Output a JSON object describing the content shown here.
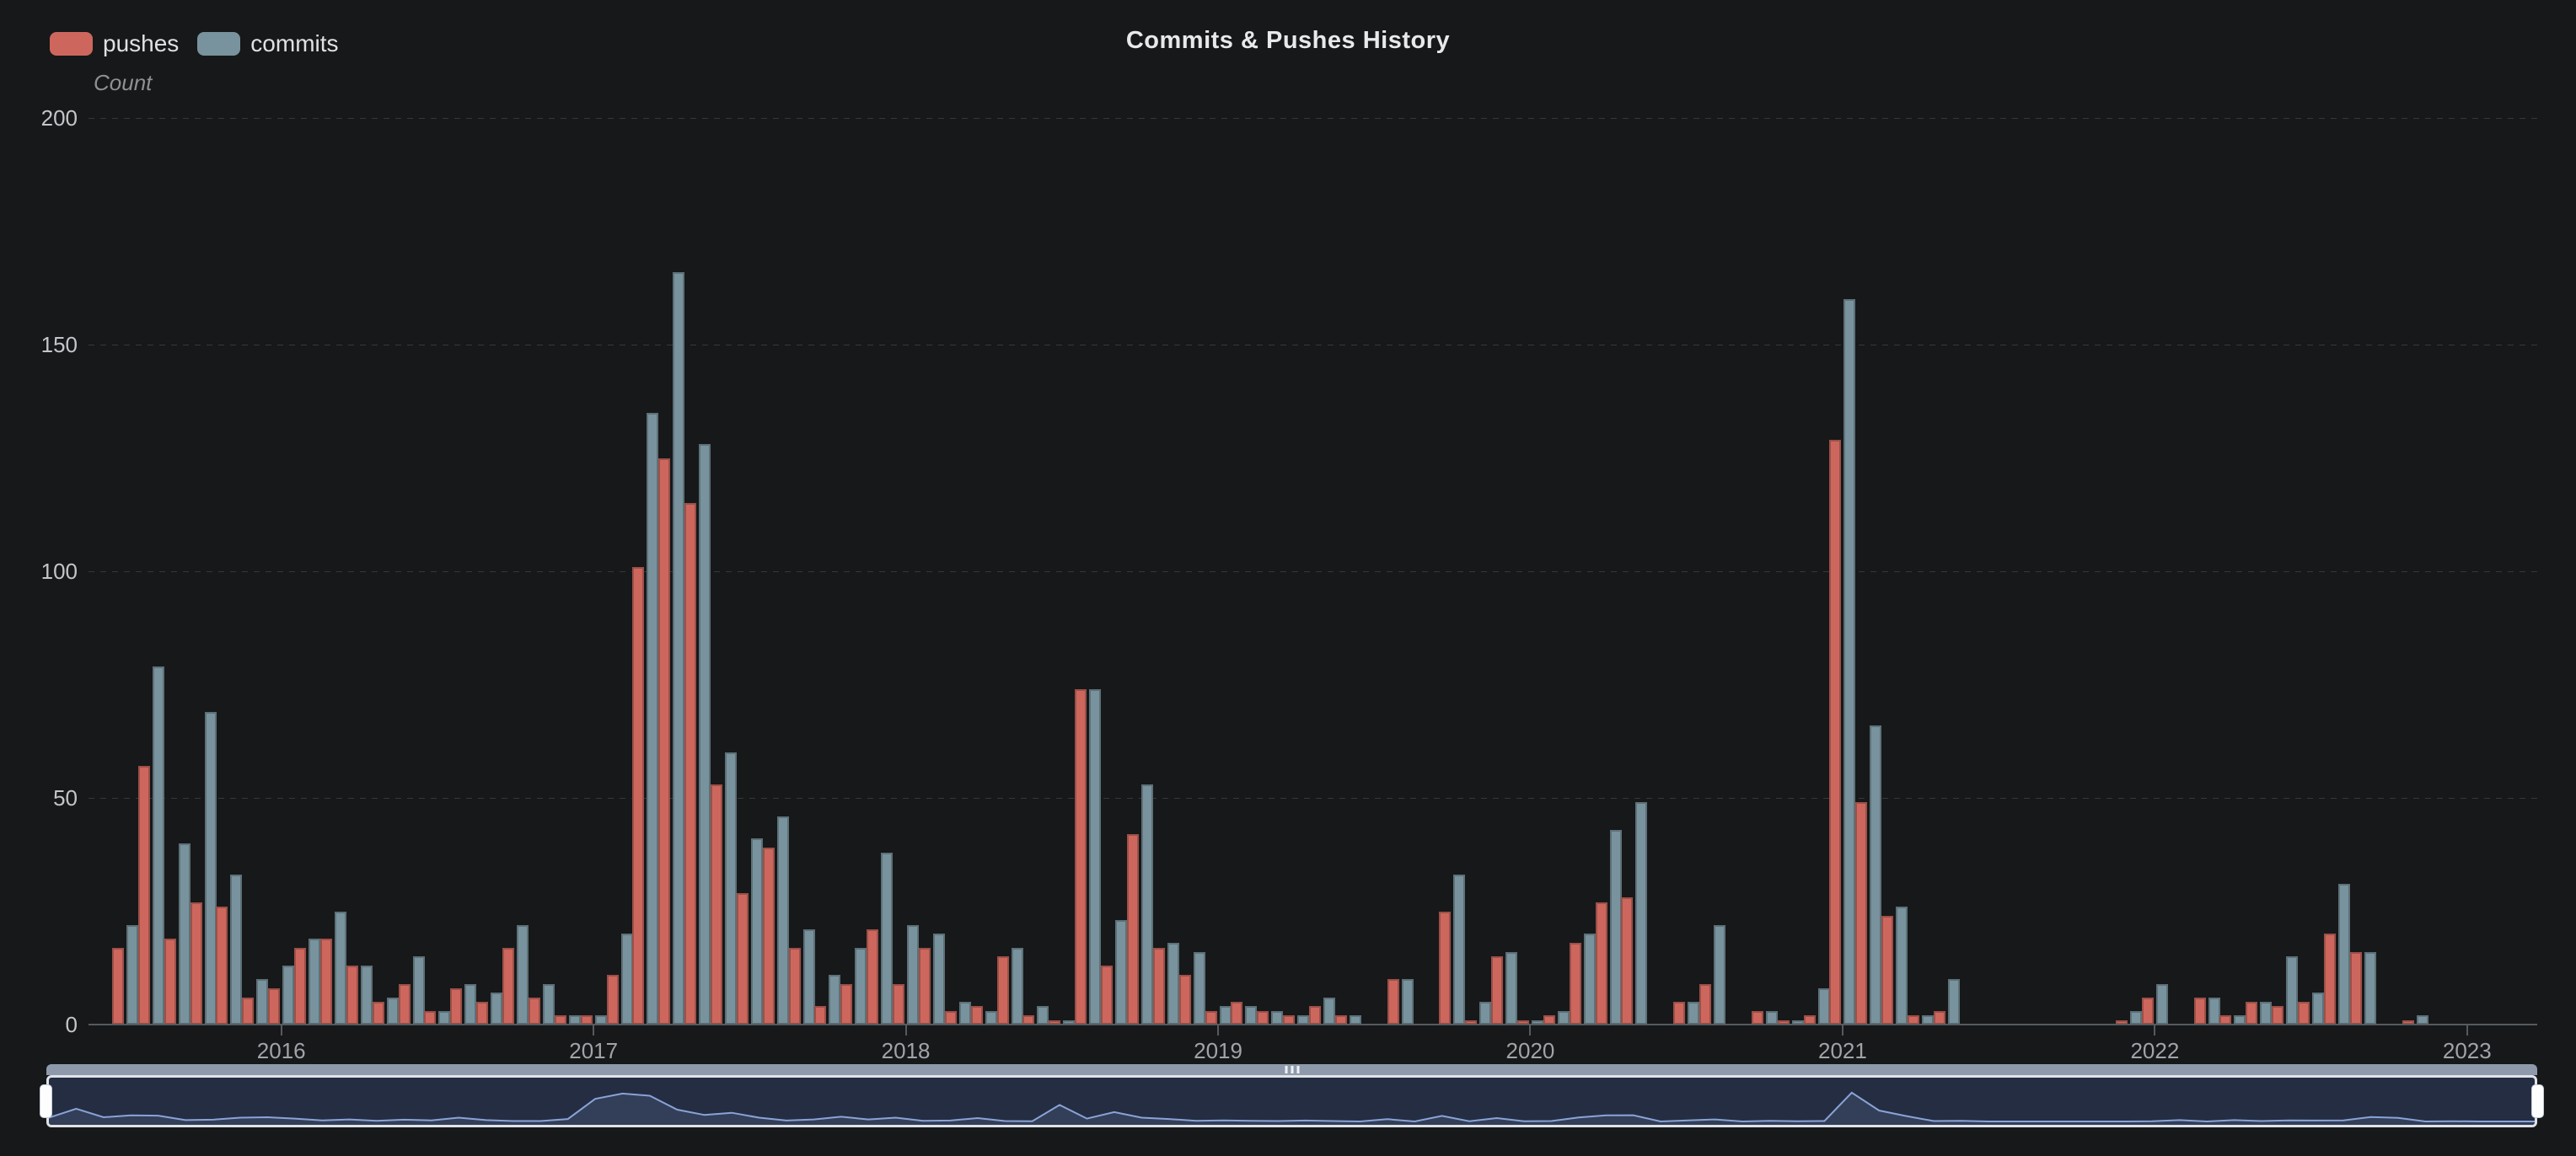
{
  "title": "Commits & Pushes History",
  "legend": [
    {
      "label": "pushes",
      "color": "#cd675d"
    },
    {
      "label": "commits",
      "color": "#78939d"
    }
  ],
  "y_axis": {
    "name": "Count",
    "ticks": [
      0,
      50,
      100,
      150,
      200
    ],
    "max": 200
  },
  "x_axis": {
    "tick_labels": [
      "2016",
      "2017",
      "2018",
      "2019",
      "2020",
      "2021",
      "2022",
      "2023"
    ]
  },
  "colors": {
    "background": "#17181a",
    "pushes": "#cd675d",
    "commits": "#78939d",
    "gridline": "#35383b",
    "axis": "#565a5e",
    "slider_strip": "#8e9aab",
    "slider_panel": "#242d42",
    "slider_area_fill": "#333e58",
    "slider_area_line": "#8aa3d6",
    "slider_handle": "#fdfdfe"
  },
  "chart_data": {
    "type": "bar",
    "title": "Commits & Pushes History",
    "xlabel": "",
    "ylabel": "Count",
    "ylim": [
      0,
      200
    ],
    "grid": "horizontal dashed",
    "legend_position": "top-left",
    "x_tick_mode": "year starts (January)",
    "datazoom": {
      "enabled": true,
      "range": "full",
      "shadow_of": "pushes"
    },
    "categories": [
      "2015-07",
      "2015-08",
      "2015-09",
      "2015-10",
      "2015-11",
      "2015-12",
      "2016-01",
      "2016-02",
      "2016-03",
      "2016-04",
      "2016-05",
      "2016-06",
      "2016-07",
      "2016-08",
      "2016-09",
      "2016-10",
      "2016-11",
      "2016-12",
      "2017-01",
      "2017-02",
      "2017-03",
      "2017-04",
      "2017-05",
      "2017-06",
      "2017-07",
      "2017-08",
      "2017-09",
      "2017-10",
      "2017-11",
      "2017-12",
      "2018-01",
      "2018-02",
      "2018-03",
      "2018-04",
      "2018-05",
      "2018-06",
      "2018-07",
      "2018-08",
      "2018-09",
      "2018-10",
      "2018-11",
      "2018-12",
      "2019-01",
      "2019-02",
      "2019-03",
      "2019-04",
      "2019-05",
      "2019-06",
      "2019-07",
      "2019-08",
      "2019-09",
      "2019-10",
      "2019-11",
      "2019-12",
      "2020-01",
      "2020-02",
      "2020-03",
      "2020-04",
      "2020-05",
      "2020-06",
      "2020-07",
      "2020-08",
      "2020-09",
      "2020-10",
      "2020-11",
      "2020-12",
      "2021-01",
      "2021-02",
      "2021-03",
      "2021-04",
      "2021-05",
      "2021-06",
      "2021-07",
      "2021-08",
      "2021-09",
      "2021-10",
      "2021-11",
      "2021-12",
      "2022-01",
      "2022-02",
      "2022-03",
      "2022-04",
      "2022-05",
      "2022-06",
      "2022-07",
      "2022-08",
      "2022-09",
      "2022-10",
      "2022-11",
      "2022-12",
      "2023-01",
      "2023-02"
    ],
    "series": [
      {
        "name": "pushes",
        "color": "#cd675d",
        "values": [
          17,
          57,
          19,
          27,
          26,
          6,
          8,
          17,
          19,
          13,
          5,
          9,
          3,
          8,
          5,
          17,
          6,
          2,
          2,
          11,
          101,
          125,
          115,
          53,
          29,
          39,
          17,
          4,
          9,
          21,
          9,
          17,
          3,
          4,
          15,
          2,
          1,
          74,
          13,
          42,
          17,
          11,
          3,
          5,
          3,
          2,
          4,
          2,
          0,
          10,
          0,
          25,
          1,
          15,
          1,
          2,
          18,
          27,
          28,
          0,
          5,
          9,
          0,
          3,
          1,
          2,
          129,
          49,
          24,
          2,
          3,
          0,
          0,
          0,
          0,
          0,
          0,
          1,
          6,
          0,
          6,
          2,
          5,
          4,
          5,
          20,
          16,
          0,
          1,
          0,
          0,
          0
        ]
      },
      {
        "name": "commits",
        "color": "#78939d",
        "values": [
          22,
          79,
          40,
          69,
          33,
          10,
          13,
          19,
          25,
          13,
          6,
          15,
          3,
          9,
          7,
          22,
          9,
          2,
          2,
          20,
          135,
          166,
          128,
          60,
          41,
          46,
          21,
          11,
          17,
          38,
          22,
          20,
          5,
          3,
          17,
          4,
          1,
          74,
          23,
          53,
          18,
          16,
          4,
          4,
          3,
          2,
          6,
          2,
          0,
          10,
          0,
          33,
          5,
          16,
          1,
          3,
          20,
          43,
          49,
          0,
          5,
          22,
          0,
          3,
          1,
          8,
          160,
          66,
          26,
          2,
          10,
          0,
          0,
          0,
          0,
          0,
          0,
          3,
          9,
          0,
          6,
          2,
          5,
          15,
          7,
          31,
          16,
          0,
          2,
          0,
          0,
          0
        ]
      }
    ]
  }
}
